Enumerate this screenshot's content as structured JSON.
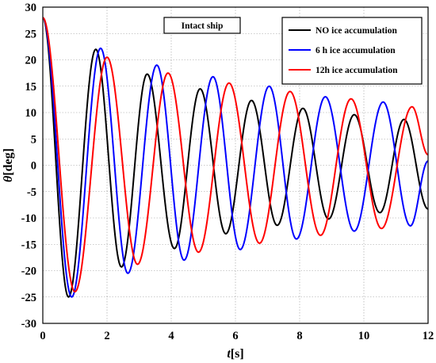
{
  "chart_data": {
    "type": "line",
    "xlabel_italic": "t",
    "xlabel_unit": "[s]",
    "ylabel_italic": "θ",
    "ylabel_unit": "[deg]",
    "annotation": "Intact ship",
    "xlim": [
      0,
      12
    ],
    "ylim": [
      -30,
      30
    ],
    "xticks": [
      0,
      2,
      4,
      6,
      8,
      10,
      12
    ],
    "yticks": [
      -30,
      -25,
      -20,
      -15,
      -10,
      -5,
      0,
      5,
      10,
      15,
      20,
      25,
      30
    ],
    "grid": true,
    "legend_position": "top-right",
    "series": [
      {
        "name": "NO ice accumulation",
        "color": "#000000",
        "peaks": [
          [
            0.0,
            28.0
          ],
          [
            0.8,
            -25.0
          ],
          [
            1.65,
            22.0
          ],
          [
            2.45,
            -19.3
          ],
          [
            3.25,
            17.3
          ],
          [
            4.1,
            -15.8
          ],
          [
            4.9,
            14.5
          ],
          [
            5.7,
            -13.0
          ],
          [
            6.5,
            12.3
          ],
          [
            7.3,
            -11.4
          ],
          [
            8.1,
            10.8
          ],
          [
            8.9,
            -10.2
          ],
          [
            9.7,
            9.6
          ],
          [
            10.5,
            -9.0
          ],
          [
            11.25,
            8.7
          ],
          [
            12.0,
            -8.3
          ]
        ]
      },
      {
        "name": "6 h ice accumulation",
        "color": "#0000ff",
        "peaks": [
          [
            0.0,
            28.0
          ],
          [
            0.9,
            -25.0
          ],
          [
            1.8,
            22.2
          ],
          [
            2.65,
            -20.5
          ],
          [
            3.55,
            19.0
          ],
          [
            4.4,
            -18.0
          ],
          [
            5.3,
            16.8
          ],
          [
            6.15,
            -16.0
          ],
          [
            7.05,
            15.0
          ],
          [
            7.9,
            -14.0
          ],
          [
            8.8,
            13.0
          ],
          [
            9.7,
            -12.5
          ],
          [
            10.6,
            12.0
          ],
          [
            11.45,
            -11.5
          ],
          [
            12.0,
            0.8
          ]
        ]
      },
      {
        "name": "12h ice accumulation",
        "color": "#ff0000",
        "peaks": [
          [
            0.0,
            28.0
          ],
          [
            1.0,
            -24.0
          ],
          [
            2.0,
            20.5
          ],
          [
            2.95,
            -18.8
          ],
          [
            3.9,
            17.5
          ],
          [
            4.85,
            -16.5
          ],
          [
            5.8,
            15.6
          ],
          [
            6.75,
            -14.8
          ],
          [
            7.7,
            14.0
          ],
          [
            8.65,
            -13.3
          ],
          [
            9.6,
            12.6
          ],
          [
            10.55,
            -12.0
          ],
          [
            11.5,
            11.1
          ],
          [
            12.0,
            2.0
          ]
        ]
      }
    ]
  }
}
